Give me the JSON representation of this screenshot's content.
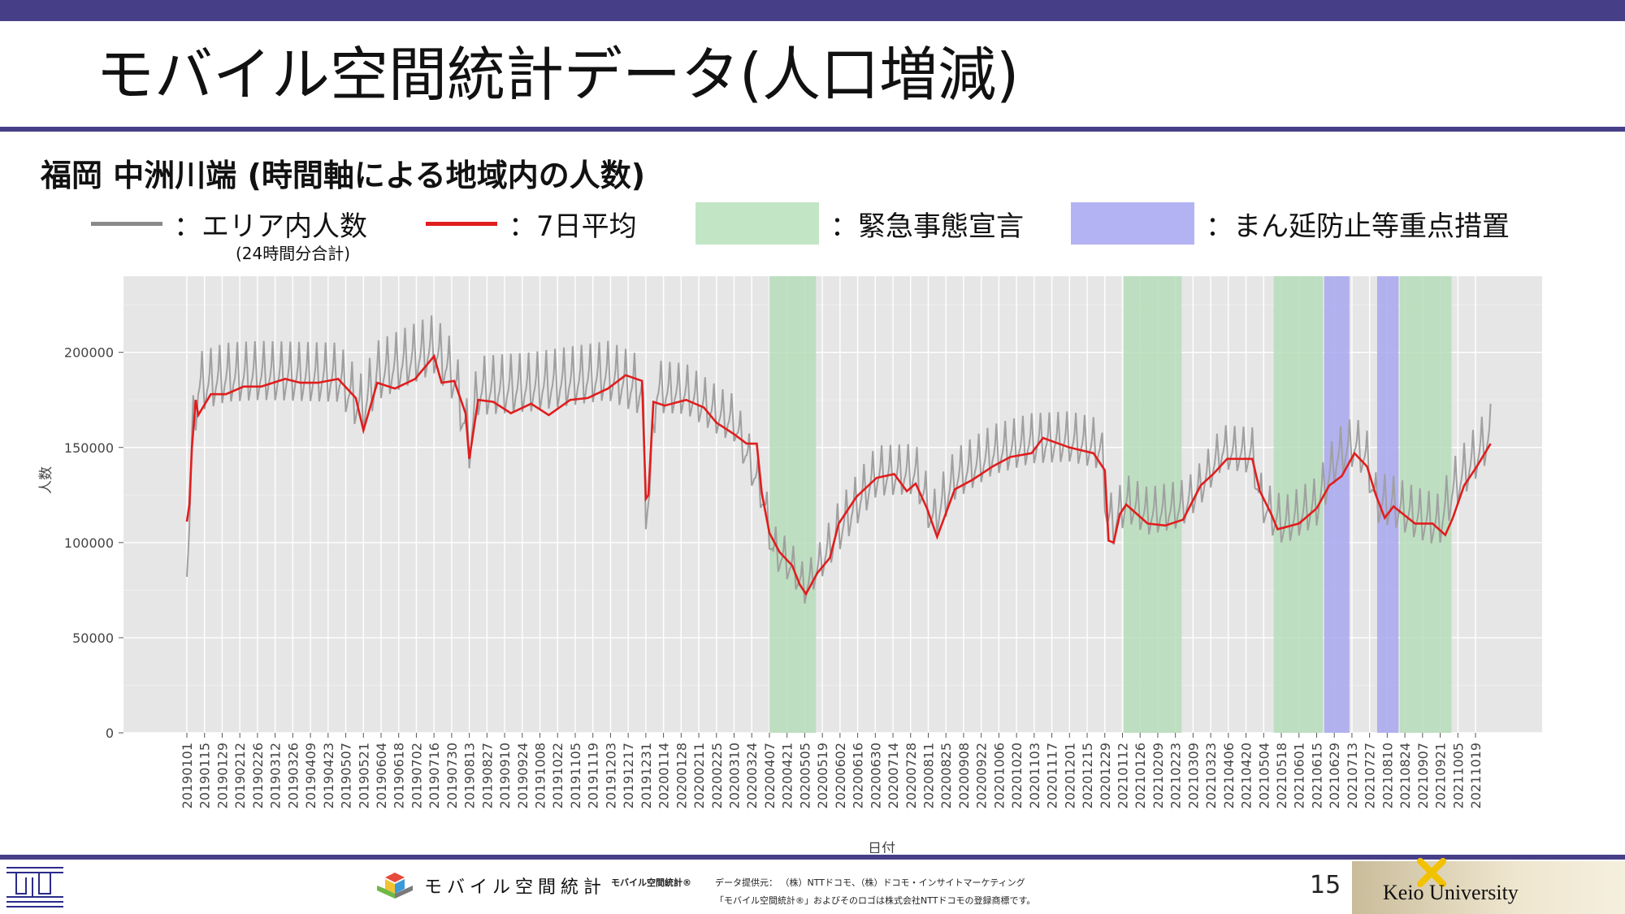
{
  "slide": {
    "title": "モバイル空間統計データ(人口増減)",
    "subtitle": "福岡 中洲川端 (時間軸による地域内の人数)",
    "page_number": "15"
  },
  "legend": {
    "daily_label": "：エリア内人数",
    "daily_sublabel": "(24時間分合計)",
    "avg_label": "：7日平均",
    "emergency_label": "：緊急事態宣言",
    "priority_label": "：まん延防止等重点措置"
  },
  "colors": {
    "header_bar": "#463f88",
    "daily_line": "#a0a0a0",
    "avg_line": "#e11d1d",
    "emergency_band": "#b5dcb8",
    "priority_band": "#a5a5ef",
    "plot_bg": "#e6e6e6"
  },
  "footer": {
    "brand": "モバイル空間統計",
    "brand_reg": "モバイル空間統計®",
    "provider": "データ提供元： （株）NTTドコモ、（株）ドコモ・インサイトマーケティング",
    "trademark": "「モバイル空間統計®」およびそのロゴは株式会社NTTドコモの登録商標です。",
    "university": "Keio University"
  },
  "chart_data": {
    "type": "line",
    "xlabel": "日付",
    "ylabel": "人数",
    "x_range": [
      "20190101",
      "20211031"
    ],
    "ylim": [
      0,
      240000
    ],
    "yticks": [
      0,
      50000,
      100000,
      150000,
      200000
    ],
    "grid": true,
    "x_ticks": [
      "20190101",
      "20190115",
      "20190129",
      "20190212",
      "20190226",
      "20190312",
      "20190326",
      "20190409",
      "20190423",
      "20190507",
      "20190521",
      "20190604",
      "20190618",
      "20190702",
      "20190716",
      "20190730",
      "20190813",
      "20190827",
      "20190910",
      "20190924",
      "20191008",
      "20191022",
      "20191105",
      "20191119",
      "20191203",
      "20191217",
      "20191231",
      "20200114",
      "20200128",
      "20200211",
      "20200225",
      "20200310",
      "20200324",
      "20200407",
      "20200421",
      "20200505",
      "20200519",
      "20200602",
      "20200616",
      "20200630",
      "20200714",
      "20200728",
      "20200811",
      "20200825",
      "20200908",
      "20200922",
      "20201006",
      "20201020",
      "20201103",
      "20201117",
      "20201201",
      "20201215",
      "20201229",
      "20210112",
      "20210126",
      "20210209",
      "20210223",
      "20210309",
      "20210323",
      "20210406",
      "20210420",
      "20210504",
      "20210518",
      "20210601",
      "20210615",
      "20210629",
      "20210713",
      "20210727",
      "20210810",
      "20210824",
      "20210907",
      "20210921",
      "20211005",
      "20211019"
    ],
    "bands": [
      {
        "type": "緊急事態宣言",
        "start": "20200407",
        "end": "20200514"
      },
      {
        "type": "緊急事態宣言",
        "start": "20210113",
        "end": "20210228"
      },
      {
        "type": "緊急事態宣言",
        "start": "20210512",
        "end": "20210620"
      },
      {
        "type": "まん延防止等重点措置",
        "start": "20210621",
        "end": "20210711"
      },
      {
        "type": "まん延防止等重点措置",
        "start": "20210802",
        "end": "20210819"
      },
      {
        "type": "緊急事態宣言",
        "start": "20210820",
        "end": "20210930"
      }
    ],
    "series": [
      {
        "name": "エリア内人数",
        "role": "daily",
        "style": "weekly oscillation",
        "weekly_amplitude": [
          [
            "20190101",
            20000
          ],
          [
            "20191231",
            20000
          ],
          [
            "20200101",
            18000
          ],
          [
            "20200407",
            15000
          ],
          [
            "20200514",
            12000
          ],
          [
            "20200601",
            17000
          ],
          [
            "20201229",
            17000
          ],
          [
            "20210113",
            16000
          ],
          [
            "20210228",
            16000
          ],
          [
            "20210301",
            14000
          ],
          [
            "20210512",
            16000
          ],
          [
            "20211031",
            18000
          ]
        ],
        "values": [
          [
            "20190101",
            93000
          ],
          [
            "20190103",
            110000
          ],
          [
            "20190105",
            150000
          ],
          [
            "20190107",
            165000
          ],
          [
            "20190110",
            180000
          ],
          [
            "20190201",
            185000
          ],
          [
            "20190301",
            186000
          ],
          [
            "20190501",
            185000
          ],
          [
            "20190520",
            168000
          ],
          [
            "20190601",
            186000
          ],
          [
            "20190716",
            200000
          ],
          [
            "20190801",
            185000
          ],
          [
            "20190813",
            150000
          ],
          [
            "20190820",
            178000
          ],
          [
            "20191001",
            180000
          ],
          [
            "20191201",
            186000
          ],
          [
            "20191228",
            178000
          ],
          [
            "20191231",
            118000
          ],
          [
            "20200103",
            125000
          ],
          [
            "20200108",
            178000
          ],
          [
            "20200201",
            177000
          ],
          [
            "20200228",
            165000
          ],
          [
            "20200310",
            162000
          ],
          [
            "20200401",
            125000
          ],
          [
            "20200410",
            95000
          ],
          [
            "20200425",
            86000
          ],
          [
            "20200505",
            75000
          ],
          [
            "20200515",
            85000
          ],
          [
            "20200601",
            105000
          ],
          [
            "20200701",
            134000
          ],
          [
            "20200801",
            135000
          ],
          [
            "20200815",
            110000
          ],
          [
            "20200901",
            132000
          ],
          [
            "20201001",
            145000
          ],
          [
            "20201101",
            151000
          ],
          [
            "20201201",
            152000
          ],
          [
            "20201226",
            148000
          ],
          [
            "20201231",
            112000
          ],
          [
            "20210105",
            108000
          ],
          [
            "20210115",
            120000
          ],
          [
            "20210201",
            113000
          ],
          [
            "20210301",
            117000
          ],
          [
            "20210315",
            128000
          ],
          [
            "20210401",
            147000
          ],
          [
            "20210425",
            145000
          ],
          [
            "20210501",
            122000
          ],
          [
            "20210510",
            113000
          ],
          [
            "20210520",
            108000
          ],
          [
            "20210615",
            118000
          ],
          [
            "20210701",
            143000
          ],
          [
            "20210715",
            150000
          ],
          [
            "20210725",
            142000
          ],
          [
            "20210801",
            120000
          ],
          [
            "20210815",
            118000
          ],
          [
            "20210901",
            112000
          ],
          [
            "20210920",
            108000
          ],
          [
            "20211001",
            126000
          ],
          [
            "20211031",
            155000
          ]
        ]
      },
      {
        "name": "7日平均",
        "role": "average",
        "values": [
          [
            "20190101",
            111000
          ],
          [
            "20190103",
            120000
          ],
          [
            "20190105",
            150000
          ],
          [
            "20190108",
            175000
          ],
          [
            "20190110",
            167000
          ],
          [
            "20190120",
            178000
          ],
          [
            "20190201",
            178000
          ],
          [
            "20190215",
            182000
          ],
          [
            "20190301",
            182000
          ],
          [
            "20190320",
            186000
          ],
          [
            "20190401",
            184000
          ],
          [
            "20190415",
            184000
          ],
          [
            "20190501",
            186000
          ],
          [
            "20190515",
            176000
          ],
          [
            "20190521",
            159000
          ],
          [
            "20190601",
            184000
          ],
          [
            "20190615",
            181000
          ],
          [
            "20190701",
            186000
          ],
          [
            "20190716",
            198000
          ],
          [
            "20190722",
            184000
          ],
          [
            "20190801",
            185000
          ],
          [
            "20190810",
            168000
          ],
          [
            "20190813",
            144000
          ],
          [
            "20190820",
            175000
          ],
          [
            "20190901",
            174000
          ],
          [
            "20190915",
            168000
          ],
          [
            "20191001",
            173000
          ],
          [
            "20191015",
            167000
          ],
          [
            "20191101",
            175000
          ],
          [
            "20191115",
            176000
          ],
          [
            "20191201",
            181000
          ],
          [
            "20191215",
            188000
          ],
          [
            "20191228",
            185000
          ],
          [
            "20191231",
            123000
          ],
          [
            "20200102",
            125000
          ],
          [
            "20200106",
            174000
          ],
          [
            "20200115",
            172000
          ],
          [
            "20200201",
            175000
          ],
          [
            "20200215",
            171000
          ],
          [
            "20200225",
            163000
          ],
          [
            "20200310",
            157000
          ],
          [
            "20200320",
            152000
          ],
          [
            "20200328",
            152000
          ],
          [
            "20200401",
            126000
          ],
          [
            "20200407",
            105000
          ],
          [
            "20200415",
            95000
          ],
          [
            "20200425",
            88000
          ],
          [
            "20200501",
            78000
          ],
          [
            "20200506",
            73000
          ],
          [
            "20200515",
            84000
          ],
          [
            "20200525",
            92000
          ],
          [
            "20200601",
            110000
          ],
          [
            "20200615",
            124000
          ],
          [
            "20200701",
            134000
          ],
          [
            "20200715",
            136000
          ],
          [
            "20200725",
            127000
          ],
          [
            "20200801",
            131000
          ],
          [
            "20200810",
            118000
          ],
          [
            "20200818",
            103000
          ],
          [
            "20200901",
            128000
          ],
          [
            "20200915",
            133000
          ],
          [
            "20201001",
            140000
          ],
          [
            "20201015",
            145000
          ],
          [
            "20201101",
            147000
          ],
          [
            "20201110",
            155000
          ],
          [
            "20201201",
            150000
          ],
          [
            "20201220",
            147000
          ],
          [
            "20201229",
            138000
          ],
          [
            "20210101",
            101000
          ],
          [
            "20210105",
            100000
          ],
          [
            "20210110",
            115000
          ],
          [
            "20210115",
            120000
          ],
          [
            "20210201",
            110000
          ],
          [
            "20210215",
            109000
          ],
          [
            "20210301",
            112000
          ],
          [
            "20210315",
            130000
          ],
          [
            "20210325",
            136000
          ],
          [
            "20210405",
            144000
          ],
          [
            "20210425",
            144000
          ],
          [
            "20210501",
            127000
          ],
          [
            "20210510",
            115000
          ],
          [
            "20210515",
            107000
          ],
          [
            "20210601",
            110000
          ],
          [
            "20210615",
            118000
          ],
          [
            "20210625",
            130000
          ],
          [
            "20210705",
            135000
          ],
          [
            "20210715",
            147000
          ],
          [
            "20210725",
            140000
          ],
          [
            "20210801",
            125000
          ],
          [
            "20210808",
            113000
          ],
          [
            "20210815",
            119000
          ],
          [
            "20210901",
            110000
          ],
          [
            "20210915",
            110000
          ],
          [
            "20210925",
            104000
          ],
          [
            "20211001",
            113000
          ],
          [
            "20211010",
            130000
          ],
          [
            "20211020",
            140000
          ],
          [
            "20211031",
            152000
          ]
        ]
      }
    ]
  }
}
